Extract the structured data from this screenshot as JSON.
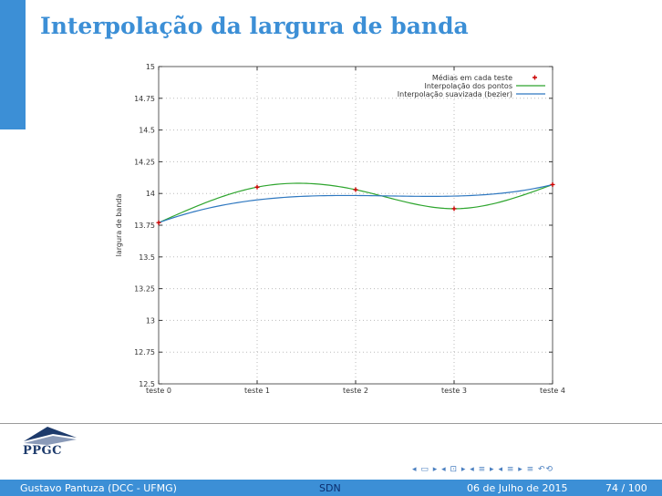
{
  "slide": {
    "title": "Interpolação da largura de banda",
    "logo_text": "PPGC",
    "nav_symbols": "◂ ▭ ▸ ◂ ⊡ ▸ ◂ ≡ ▸ ◂ ≡ ▸ ≡ ↶⟲",
    "footer": {
      "author": "Gustavo Pantuza (DCC - UFMG)",
      "center": "SDN",
      "date": "06 de Julho de 2015",
      "page": "74 / 100"
    }
  },
  "chart_data": {
    "type": "line",
    "title": "",
    "xlabel": "",
    "ylabel": "largura de banda",
    "categories": [
      "teste 0",
      "teste 1",
      "teste 2",
      "teste 3",
      "teste 4"
    ],
    "ylim": [
      12.5,
      15
    ],
    "yticks": [
      "12.5",
      "12.75",
      "13",
      "13.25",
      "13.5",
      "13.75",
      "14",
      "14.25",
      "14.5",
      "14.75",
      "15"
    ],
    "grid": true,
    "legend_position": "top-right",
    "series": [
      {
        "name": "Médias em cada teste",
        "style": "points",
        "color": "#cc0000",
        "values": [
          13.77,
          14.05,
          14.03,
          13.88,
          14.07
        ]
      },
      {
        "name": "Interpolação dos pontos",
        "style": "spline",
        "color": "#2ea52e",
        "values": [
          13.77,
          14.05,
          14.03,
          13.88,
          14.07
        ]
      },
      {
        "name": "Interpolação suavizada (bezier)",
        "style": "bezier",
        "color": "#2f78c0",
        "values": [
          13.77,
          14.05,
          14.03,
          13.88,
          14.07
        ]
      }
    ]
  }
}
